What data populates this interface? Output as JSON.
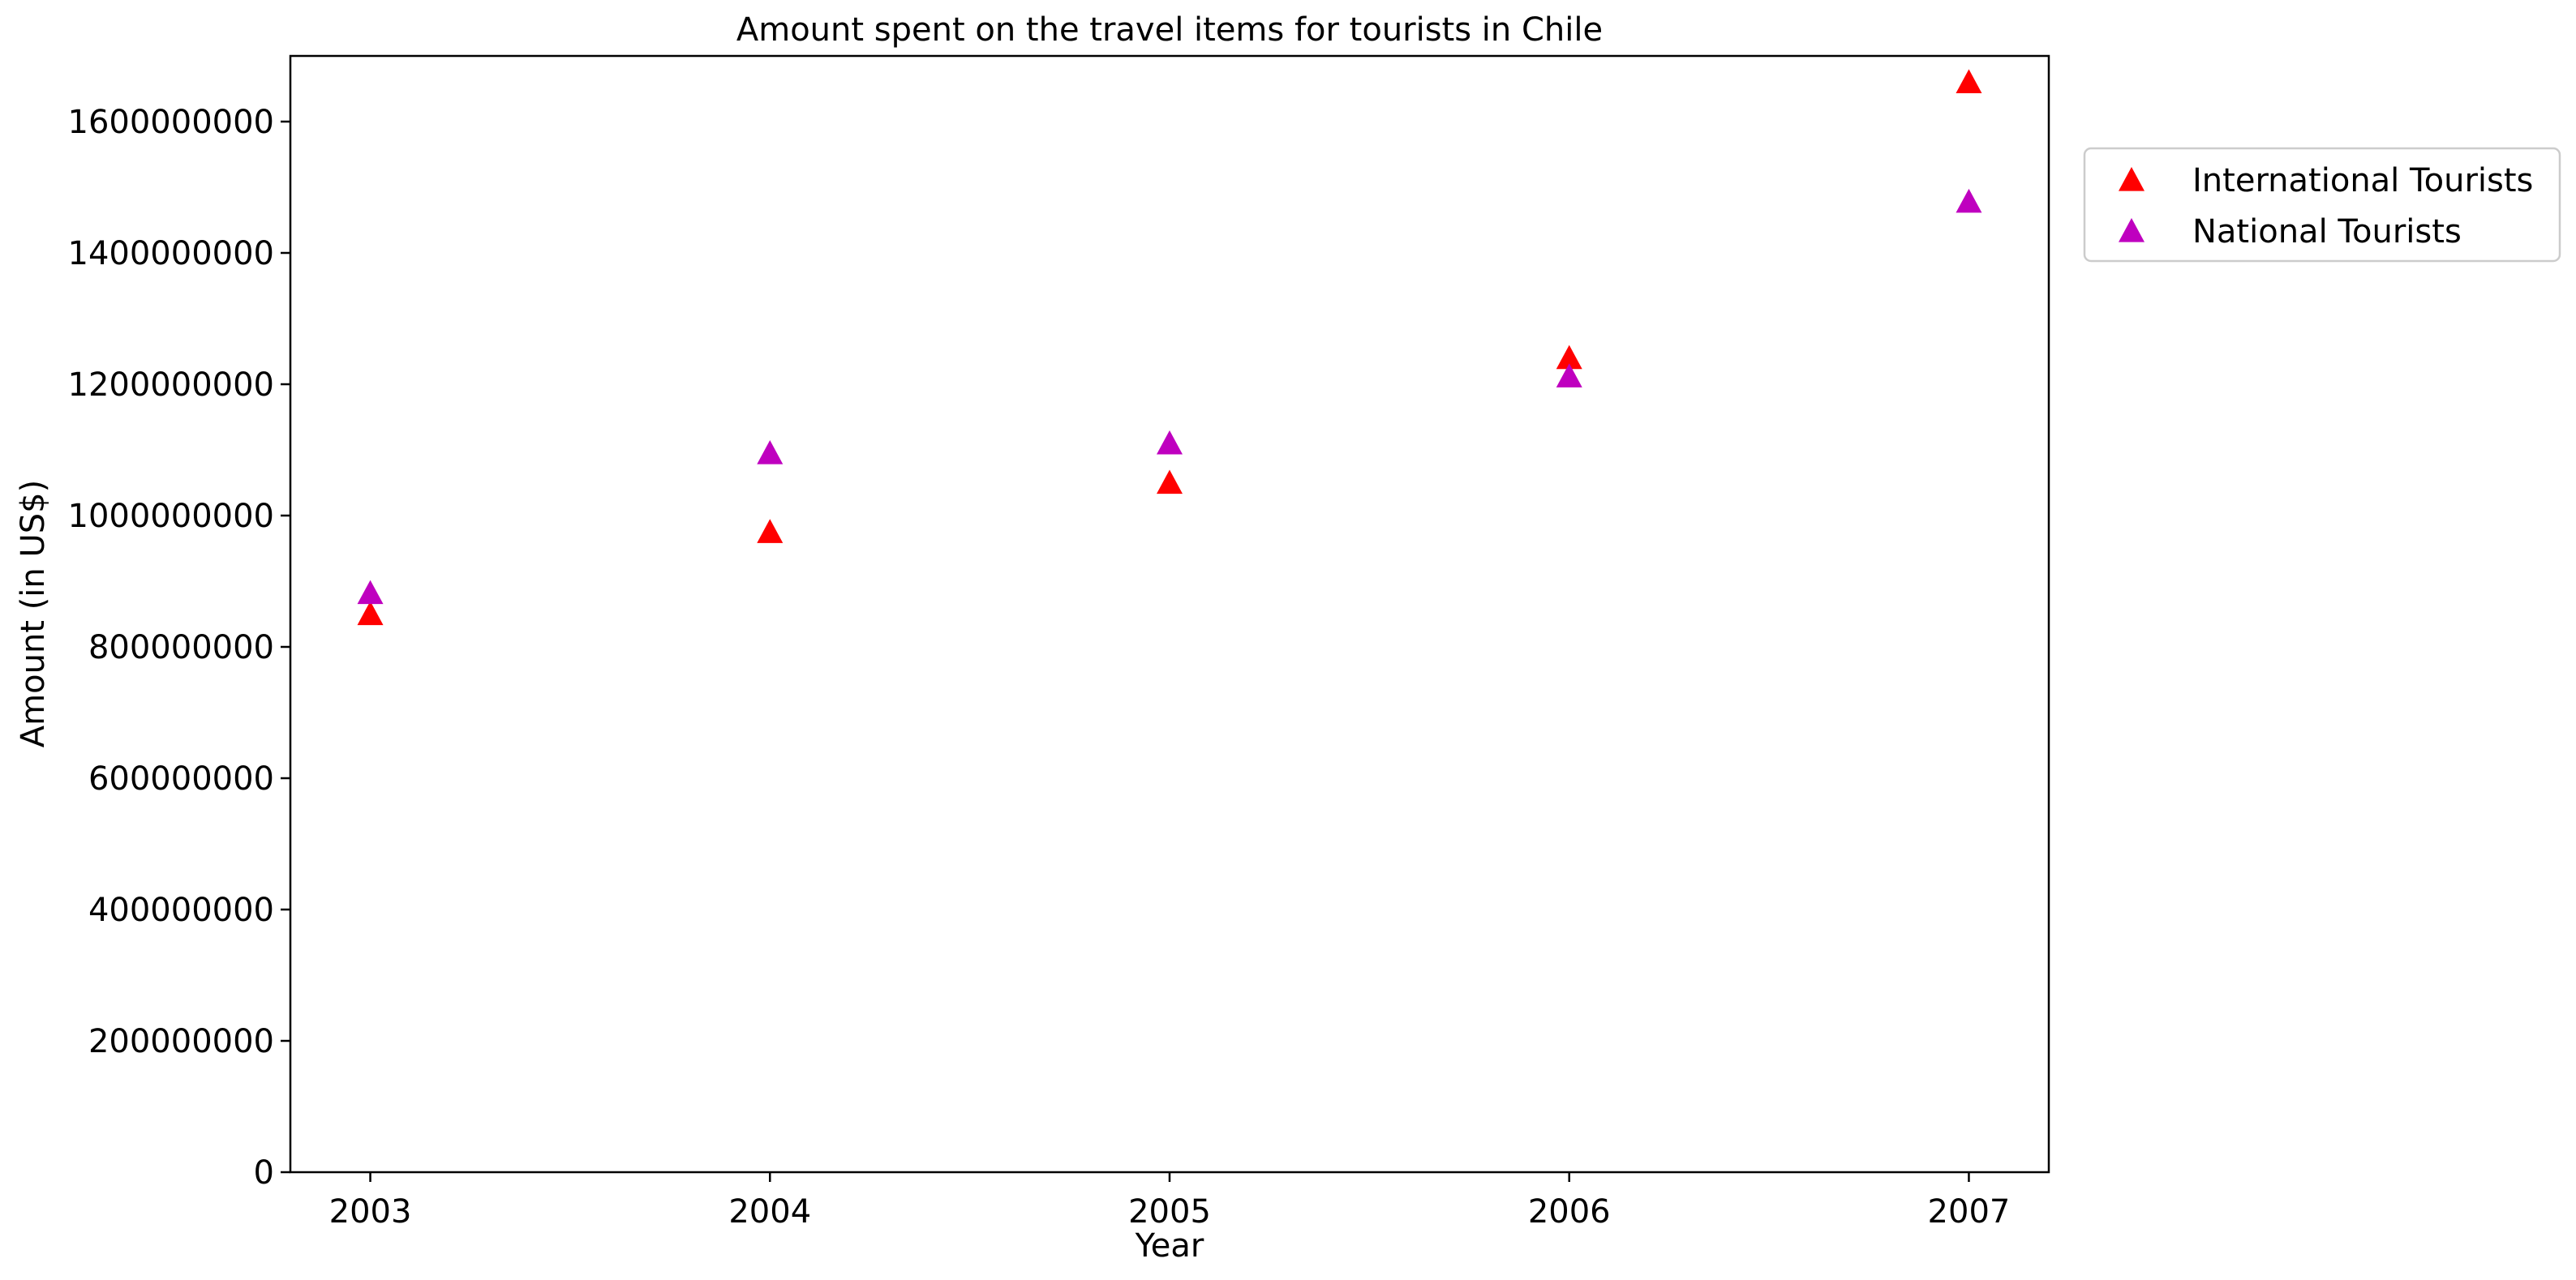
{
  "chart_data": {
    "type": "scatter",
    "title": "Amount spent on the travel items for tourists in Chile",
    "xlabel": "Year",
    "ylabel": "Amount (in US$)",
    "x": [
      "2003",
      "2004",
      "2005",
      "2006",
      "2007"
    ],
    "xlim": [
      2002.8,
      2007.2
    ],
    "ylim": [
      0,
      1700000000
    ],
    "yticks": [
      0,
      200000000,
      400000000,
      600000000,
      800000000,
      1000000000,
      1200000000,
      1400000000,
      1600000000
    ],
    "ytick_labels": [
      "0",
      "200000000",
      "400000000",
      "600000000",
      "800000000",
      "1000000000",
      "1200000000",
      "1400000000",
      "1600000000"
    ],
    "grid": false,
    "legend_position": "outside top-right",
    "marker": "triangle-up",
    "series": [
      {
        "name": "International Tourists",
        "color": "#ff0000",
        "values": [
          850000000,
          975000000,
          1050000000,
          1240000000,
          1660000000
        ]
      },
      {
        "name": "National Tourists",
        "color": "#bf00bf",
        "values": [
          882000000,
          1095000000,
          1110000000,
          1212000000,
          1478000000
        ]
      }
    ]
  }
}
